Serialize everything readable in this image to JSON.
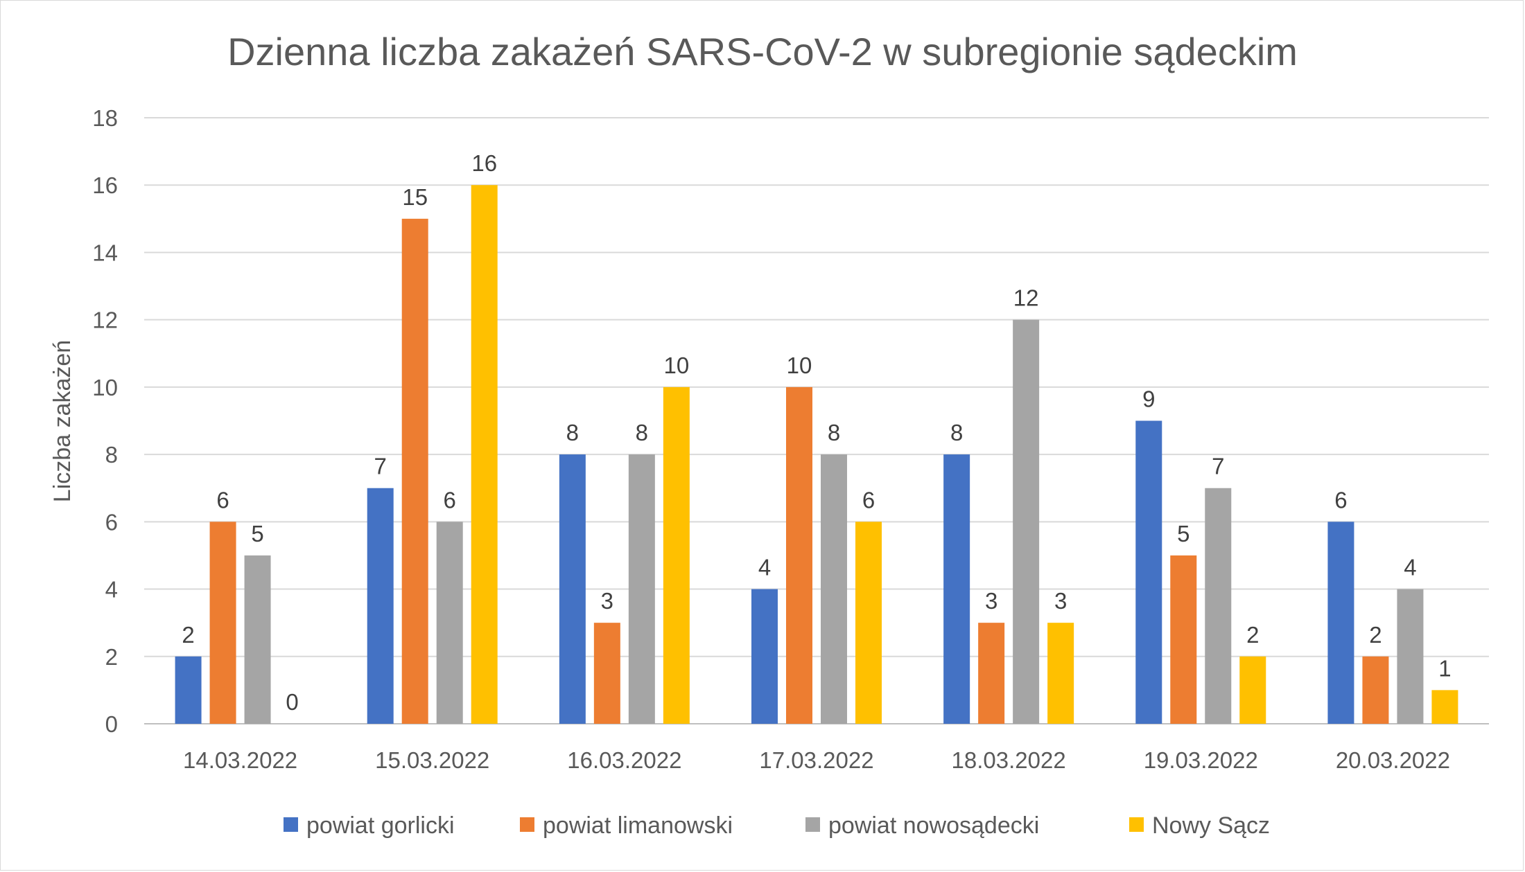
{
  "chart_data": {
    "type": "bar",
    "title": "Dzienna liczba zakażeń SARS-CoV-2 w subregionie sądeckim",
    "xlabel": "",
    "ylabel": "Liczba zakażeń",
    "ylim": [
      0,
      18
    ],
    "yticks": [
      0,
      2,
      4,
      6,
      8,
      10,
      12,
      14,
      16,
      18
    ],
    "grid": true,
    "legend_position": "bottom",
    "categories": [
      "14.03.2022",
      "15.03.2022",
      "16.03.2022",
      "17.03.2022",
      "18.03.2022",
      "19.03.2022",
      "20.03.2022"
    ],
    "series": [
      {
        "name": "powiat gorlicki",
        "color": "#4472C4",
        "values": [
          2,
          7,
          8,
          4,
          8,
          9,
          6
        ]
      },
      {
        "name": "powiat limanowski",
        "color": "#ED7D31",
        "values": [
          6,
          15,
          3,
          10,
          3,
          5,
          2
        ]
      },
      {
        "name": "powiat nowosądecki",
        "color": "#A5A5A5",
        "values": [
          5,
          6,
          8,
          8,
          12,
          7,
          4
        ]
      },
      {
        "name": "Nowy Sącz",
        "color": "#FFC000",
        "values": [
          0,
          16,
          10,
          6,
          3,
          2,
          1
        ]
      }
    ]
  }
}
